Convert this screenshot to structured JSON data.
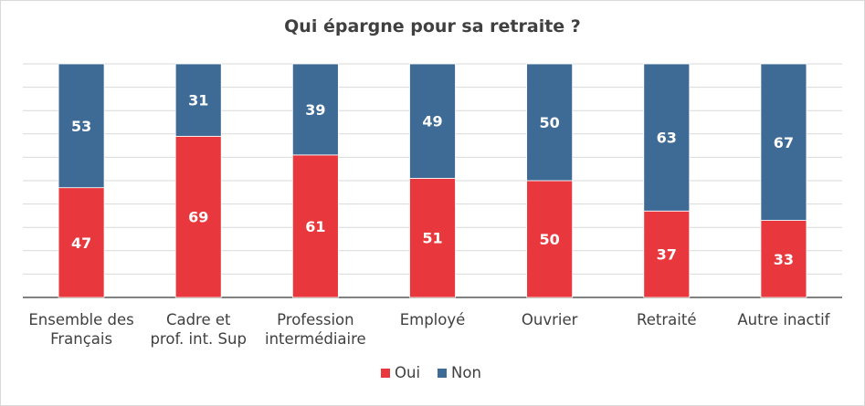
{
  "chart_data": {
    "type": "bar",
    "stacked": true,
    "title": "Qui épargne pour sa retraite ?",
    "categories": [
      [
        "Ensemble des",
        "Français"
      ],
      [
        "Cadre et",
        "prof. int. Sup"
      ],
      [
        "Profession",
        "intermédiaire"
      ],
      [
        "Employé"
      ],
      [
        "Ouvrier"
      ],
      [
        "Retraité"
      ],
      [
        "Autre inactif"
      ]
    ],
    "series": [
      {
        "name": "Oui",
        "color": "#e8383d",
        "values": [
          47,
          69,
          61,
          51,
          50,
          37,
          33
        ]
      },
      {
        "name": "Non",
        "color": "#3e6a96",
        "values": [
          53,
          31,
          39,
          49,
          50,
          63,
          67
        ]
      }
    ],
    "ylim": [
      0,
      100
    ],
    "grid": true,
    "legend": "bottom-center"
  }
}
